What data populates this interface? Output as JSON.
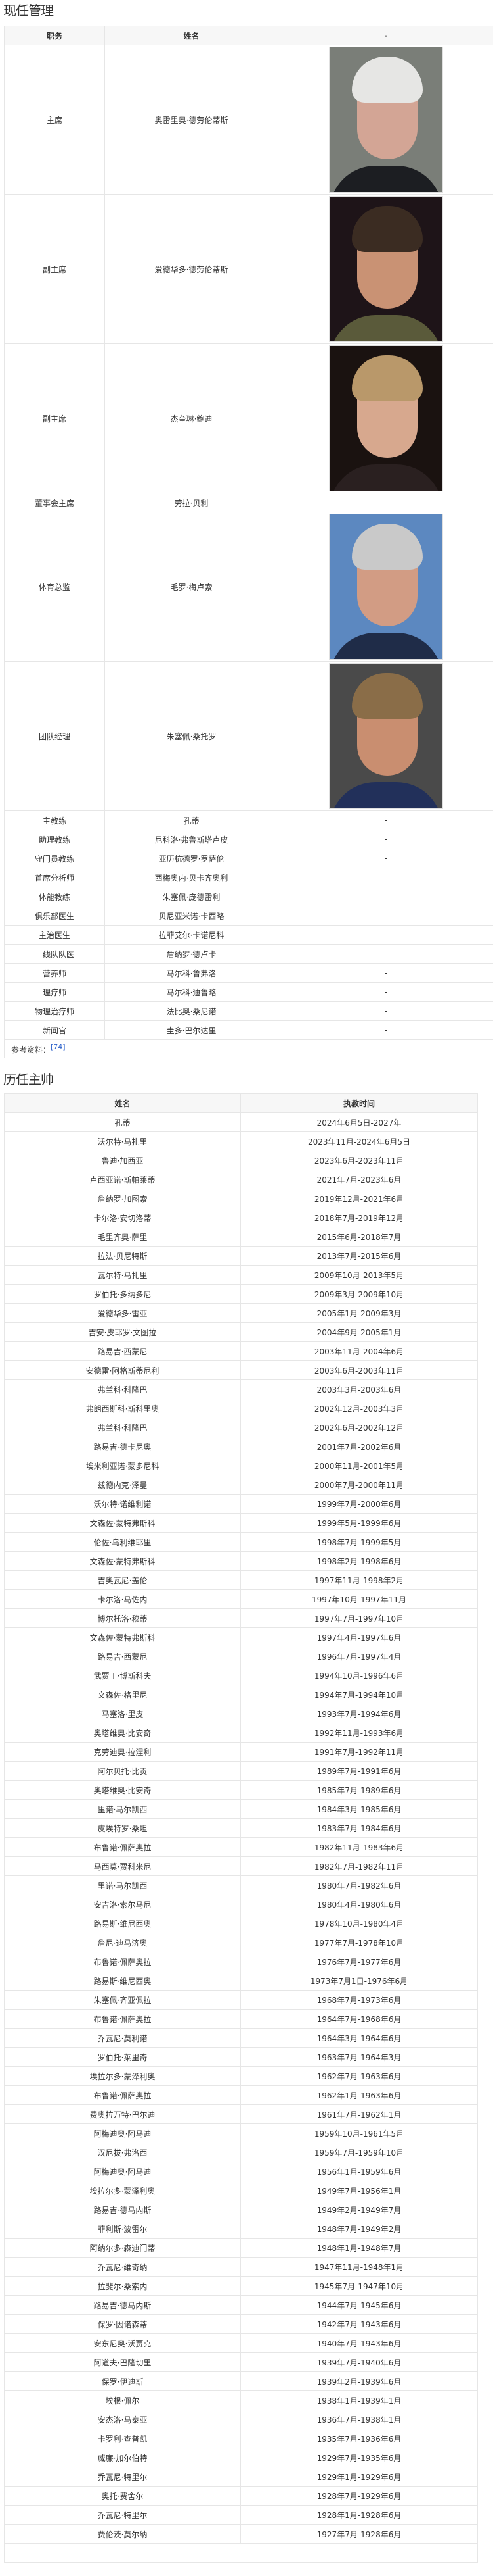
{
  "management": {
    "title": "现任管理",
    "headers": [
      "职务",
      "姓名",
      "-"
    ],
    "rows": [
      {
        "role": "主席",
        "name": "奥雷里奥·德劳伦蒂斯",
        "photo": true,
        "extra": ""
      },
      {
        "role": "副主席",
        "name": "爱德华多·德劳伦蒂斯",
        "photo": true,
        "extra": ""
      },
      {
        "role": "副主席",
        "name": "杰奎琳·鲍迪",
        "photo": true,
        "extra": ""
      },
      {
        "role": "董事会主席",
        "name": "劳拉·贝利",
        "photo": false,
        "extra": "-"
      },
      {
        "role": "体育总监",
        "name": "毛罗·梅卢索",
        "photo": true,
        "extra": ""
      },
      {
        "role": "团队经理",
        "name": "朱塞佩·桑托罗",
        "photo": true,
        "extra": ""
      },
      {
        "role": "主教练",
        "name": "孔蒂",
        "photo": false,
        "extra": "-"
      },
      {
        "role": "助理教练",
        "name": "尼科洛·弗鲁斯塔卢皮",
        "photo": false,
        "extra": "-"
      },
      {
        "role": "守门员教练",
        "name": "亚历杭德罗·罗萨伦",
        "photo": false,
        "extra": "-"
      },
      {
        "role": "首席分析师",
        "name": "西梅奥内·贝卡齐奥利",
        "photo": false,
        "extra": "-"
      },
      {
        "role": "体能教练",
        "name": "朱塞佩·庞德雷利",
        "photo": false,
        "extra": "-"
      },
      {
        "role": "俱乐部医生",
        "name": "贝尼亚米诺·卡西略",
        "photo": false,
        "extra": ""
      },
      {
        "role": "主治医生",
        "name": "拉菲艾尔·卡诺尼科",
        "photo": false,
        "extra": "-"
      },
      {
        "role": "一线队队医",
        "name": "詹纳罗·德卢卡",
        "photo": false,
        "extra": "-"
      },
      {
        "role": "营养师",
        "name": "马尔科·鲁弗洛",
        "photo": false,
        "extra": "-"
      },
      {
        "role": "理疗师",
        "name": "马尔科·迪鲁略",
        "photo": false,
        "extra": "-"
      },
      {
        "role": "物理治疗师",
        "name": "法比奥·桑尼诺",
        "photo": false,
        "extra": "-"
      },
      {
        "role": "新闻官",
        "name": "圭多·巴尔达里",
        "photo": false,
        "extra": "-"
      }
    ],
    "reference_label": "参考资料：",
    "reference_link": "[74]"
  },
  "coaches": {
    "title": "历任主帅",
    "headers": [
      "姓名",
      "执教时间"
    ],
    "rows": [
      {
        "name": "孔蒂",
        "period": "2024年6月5日-2027年"
      },
      {
        "name": "沃尔特·马扎里",
        "period": "2023年11月-2024年6月5日"
      },
      {
        "name": "鲁迪·加西亚",
        "period": "2023年6月-2023年11月"
      },
      {
        "name": "卢西亚诺·斯帕莱蒂",
        "period": "2021年7月-2023年6月"
      },
      {
        "name": "詹纳罗·加图索",
        "period": "2019年12月-2021年6月"
      },
      {
        "name": "卡尔洛·安切洛蒂",
        "period": "2018年7月-2019年12月"
      },
      {
        "name": "毛里齐奥·萨里",
        "period": "2015年6月-2018年7月"
      },
      {
        "name": "拉法·贝尼特斯",
        "period": "2013年7月-2015年6月"
      },
      {
        "name": "瓦尔特·马扎里",
        "period": "2009年10月-2013年5月"
      },
      {
        "name": "罗伯托·多纳多尼",
        "period": "2009年3月-2009年10月"
      },
      {
        "name": "爱德华多·雷亚",
        "period": "2005年1月-2009年3月"
      },
      {
        "name": "吉安·皮耶罗·文图拉",
        "period": "2004年9月-2005年1月"
      },
      {
        "name": "路易吉·西蒙尼",
        "period": "2003年11月-2004年6月"
      },
      {
        "name": "安德雷·阿格斯蒂尼利",
        "period": "2003年6月-2003年11月"
      },
      {
        "name": "弗兰科·科隆巴",
        "period": "2003年3月-2003年6月"
      },
      {
        "name": "弗朗西斯科·斯科里奥",
        "period": "2002年12月-2003年3月"
      },
      {
        "name": "弗兰科·科隆巴",
        "period": "2002年6月-2002年12月"
      },
      {
        "name": "路易吉·德卡尼奥",
        "period": "2001年7月-2002年6月"
      },
      {
        "name": "埃米利亚诺·蒙多尼科",
        "period": "2000年11月-2001年5月"
      },
      {
        "name": "兹德内克·泽曼",
        "period": "2000年7月-2000年11月"
      },
      {
        "name": "沃尔特·诺维利诺",
        "period": "1999年7月-2000年6月"
      },
      {
        "name": "文森佐·蒙特弗斯科",
        "period": "1999年5月-1999年6月"
      },
      {
        "name": "伦佐·乌利维耶里",
        "period": "1998年7月-1999年5月"
      },
      {
        "name": "文森佐·蒙特弗斯科",
        "period": "1998年2月-1998年6月"
      },
      {
        "name": "吉奥瓦尼·盖伦",
        "period": "1997年11月-1998年2月"
      },
      {
        "name": "卡尔洛·马佐内",
        "period": "1997年10月-1997年11月"
      },
      {
        "name": "博尔托洛·穆蒂",
        "period": "1997年7月-1997年10月"
      },
      {
        "name": "文森佐·蒙特弗斯科",
        "period": "1997年4月-1997年6月"
      },
      {
        "name": "路易吉·西蒙尼",
        "period": "1996年7月-1997年4月"
      },
      {
        "name": "武贾丁·博斯科夫",
        "period": "1994年10月-1996年6月"
      },
      {
        "name": "文森佐·格里尼",
        "period": "1994年7月-1994年10月"
      },
      {
        "name": "马塞洛·里皮",
        "period": "1993年7月-1994年6月"
      },
      {
        "name": "奥塔维奥·比安奇",
        "period": "1992年11月-1993年6月"
      },
      {
        "name": "克劳迪奥·拉涅利",
        "period": "1991年7月-1992年11月"
      },
      {
        "name": "阿尔贝托·比贡",
        "period": "1989年7月-1991年6月"
      },
      {
        "name": "奥塔维奥·比安奇",
        "period": "1985年7月-1989年6月"
      },
      {
        "name": "里诺·马尔凯西",
        "period": "1984年3月-1985年6月"
      },
      {
        "name": "皮埃特罗·桑坦",
        "period": "1983年7月-1984年6月"
      },
      {
        "name": "布鲁诺·佩萨奥拉",
        "period": "1982年11月-1983年6月"
      },
      {
        "name": "马西莫·贾科米尼",
        "period": "1982年7月-1982年11月"
      },
      {
        "name": "里诺·马尔凯西",
        "period": "1980年7月-1982年6月"
      },
      {
        "name": "安吉洛·索尔马尼",
        "period": "1980年4月-1980年6月"
      },
      {
        "name": "路易斯·维尼西奥",
        "period": "1978年10月-1980年4月"
      },
      {
        "name": "詹尼·迪马济奥",
        "period": "1977年7月-1978年10月"
      },
      {
        "name": "布鲁诺·佩萨奥拉",
        "period": "1976年7月-1977年6月"
      },
      {
        "name": "路易斯·维尼西奥",
        "period": "1973年7月1日-1976年6月"
      },
      {
        "name": "朱塞佩·齐亚佩拉",
        "period": "1968年7月-1973年6月"
      },
      {
        "name": "布鲁诺·佩萨奥拉",
        "period": "1964年7月-1968年6月"
      },
      {
        "name": "乔瓦尼·莫利诺",
        "period": "1964年3月-1964年6月"
      },
      {
        "name": "罗伯托·莱里奇",
        "period": "1963年7月-1964年3月"
      },
      {
        "name": "埃拉尔多·蒙泽利奥",
        "period": "1962年7月-1963年6月"
      },
      {
        "name": "布鲁诺·佩萨奥拉",
        "period": "1962年1月-1963年6月"
      },
      {
        "name": "费奥拉万特·巴尔迪",
        "period": "1961年7月-1962年1月"
      },
      {
        "name": "阿梅迪奥·阿马迪",
        "period": "1959年10月-1961年5月"
      },
      {
        "name": "汉尼拔·弗洛西",
        "period": "1959年7月-1959年10月"
      },
      {
        "name": "阿梅迪奥·阿马迪",
        "period": "1956年1月-1959年6月"
      },
      {
        "name": "埃拉尔多·蒙泽利奥",
        "period": "1949年7月-1956年1月"
      },
      {
        "name": "路易吉·德马内斯",
        "period": "1949年2月-1949年7月"
      },
      {
        "name": "菲利斯·波雷尔",
        "period": "1948年7月-1949年2月"
      },
      {
        "name": "阿纳尔多·森迪门蒂",
        "period": "1948年1月-1948年7月"
      },
      {
        "name": "乔瓦尼·维奇纳",
        "period": "1947年11月-1948年1月"
      },
      {
        "name": "拉斐尔·桑索内",
        "period": "1945年7月-1947年10月"
      },
      {
        "name": "路易吉·德马内斯",
        "period": "1944年7月-1945年6月"
      },
      {
        "name": "保罗·因诺森蒂",
        "period": "1942年7月-1943年6月"
      },
      {
        "name": "安东尼奥·沃贾克",
        "period": "1940年7月-1943年6月"
      },
      {
        "name": "阿道夫·巴隆切里",
        "period": "1939年7月-1940年6月"
      },
      {
        "name": "保罗·伊迪斯",
        "period": "1939年2月-1939年6月"
      },
      {
        "name": "埃根·佩尔",
        "period": "1938年1月-1939年1月"
      },
      {
        "name": "安杰洛·马泰亚",
        "period": "1936年7月-1938年1月"
      },
      {
        "name": "卡罗利·查普凯",
        "period": "1935年7月-1936年6月"
      },
      {
        "name": "威廉·加尔伯特",
        "period": "1929年7月-1935年6月"
      },
      {
        "name": "乔瓦尼·特里尔",
        "period": "1929年1月-1929年6月"
      },
      {
        "name": "奥托·费舍尔",
        "period": "1928年7月-1929年6月"
      },
      {
        "name": "乔瓦尼·特里尔",
        "period": "1928年1月-1928年6月"
      },
      {
        "name": "费伦茨·莫尔纳",
        "period": "1927年7月-1928年6月"
      }
    ]
  },
  "colors": {
    "link": "#3366cc",
    "header_bg": "#f7f7f7",
    "border": "#e6e6e6",
    "text": "#333333"
  }
}
